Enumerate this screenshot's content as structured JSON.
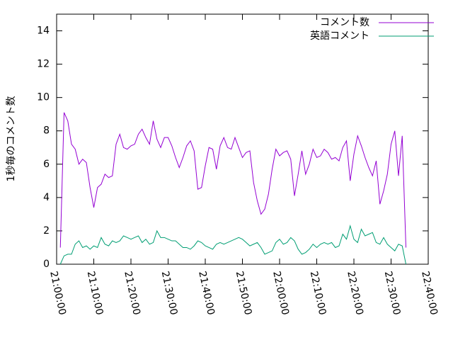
{
  "chart_data": {
    "type": "line",
    "ylabel": "1秒毎のコメント数",
    "x": [
      "21:01:00",
      "21:02:00",
      "21:03:00",
      "21:04:00",
      "21:05:00",
      "21:06:00",
      "21:07:00",
      "21:08:00",
      "21:09:00",
      "21:10:00",
      "21:11:00",
      "21:12:00",
      "21:13:00",
      "21:14:00",
      "21:15:00",
      "21:16:00",
      "21:17:00",
      "21:18:00",
      "21:19:00",
      "21:20:00",
      "21:21:00",
      "21:22:00",
      "21:23:00",
      "21:24:00",
      "21:25:00",
      "21:26:00",
      "21:27:00",
      "21:28:00",
      "21:29:00",
      "21:30:00",
      "21:31:00",
      "21:32:00",
      "21:33:00",
      "21:34:00",
      "21:35:00",
      "21:36:00",
      "21:37:00",
      "21:38:00",
      "21:39:00",
      "21:40:00",
      "21:41:00",
      "21:42:00",
      "21:43:00",
      "21:44:00",
      "21:45:00",
      "21:46:00",
      "21:47:00",
      "21:48:00",
      "21:49:00",
      "21:50:00",
      "21:51:00",
      "21:52:00",
      "21:53:00",
      "21:54:00",
      "21:55:00",
      "21:56:00",
      "21:57:00",
      "21:58:00",
      "21:59:00",
      "22:00:00",
      "22:01:00",
      "22:02:00",
      "22:03:00",
      "22:04:00",
      "22:05:00",
      "22:06:00",
      "22:07:00",
      "22:08:00",
      "22:09:00",
      "22:10:00",
      "22:11:00",
      "22:12:00",
      "22:13:00",
      "22:14:00",
      "22:15:00",
      "22:16:00",
      "22:17:00",
      "22:18:00",
      "22:19:00",
      "22:20:00",
      "22:21:00",
      "22:22:00",
      "22:23:00",
      "22:24:00",
      "22:25:00",
      "22:26:00",
      "22:27:00",
      "22:28:00",
      "22:29:00",
      "22:30:00",
      "22:31:00",
      "22:32:00",
      "22:33:00",
      "22:34:00"
    ],
    "series": [
      {
        "name": "コメント数",
        "color": "#9400d3",
        "values": [
          1.0,
          9.1,
          8.6,
          7.2,
          6.9,
          6.0,
          6.3,
          6.1,
          4.6,
          3.4,
          4.6,
          4.8,
          5.4,
          5.2,
          5.3,
          7.2,
          7.8,
          7.0,
          6.9,
          7.1,
          7.2,
          7.8,
          8.1,
          7.6,
          7.2,
          8.6,
          7.5,
          7.0,
          7.6,
          7.6,
          7.1,
          6.4,
          5.8,
          6.4,
          7.1,
          7.4,
          6.8,
          4.5,
          4.6,
          5.9,
          7.0,
          6.9,
          5.7,
          7.1,
          7.6,
          7.0,
          6.9,
          7.6,
          7.0,
          6.4,
          6.7,
          6.8,
          4.9,
          3.8,
          3.0,
          3.3,
          4.2,
          5.7,
          6.9,
          6.5,
          6.7,
          6.8,
          6.3,
          4.1,
          5.4,
          6.8,
          5.4,
          6.0,
          6.9,
          6.4,
          6.5,
          6.9,
          6.7,
          6.3,
          6.4,
          6.2,
          7.0,
          7.4,
          5.0,
          6.6,
          7.7,
          7.1,
          6.4,
          5.8,
          5.3,
          6.2,
          3.6,
          4.4,
          5.4,
          7.2,
          8.0,
          5.3,
          7.7,
          1.0
        ]
      },
      {
        "name": "英語コメント",
        "color": "#009e73",
        "values": [
          0.0,
          0.5,
          0.6,
          0.6,
          1.2,
          1.4,
          1.0,
          1.1,
          0.9,
          1.1,
          1.0,
          1.6,
          1.2,
          1.1,
          1.4,
          1.3,
          1.4,
          1.7,
          1.6,
          1.5,
          1.6,
          1.7,
          1.3,
          1.5,
          1.2,
          1.3,
          2.0,
          1.6,
          1.6,
          1.5,
          1.4,
          1.4,
          1.2,
          1.0,
          1.0,
          0.9,
          1.1,
          1.4,
          1.3,
          1.1,
          1.0,
          0.9,
          1.2,
          1.3,
          1.2,
          1.3,
          1.4,
          1.5,
          1.6,
          1.5,
          1.3,
          1.1,
          1.2,
          1.3,
          1.0,
          0.6,
          0.7,
          0.8,
          1.3,
          1.5,
          1.2,
          1.3,
          1.6,
          1.4,
          0.9,
          0.6,
          0.7,
          0.9,
          1.2,
          1.0,
          1.2,
          1.3,
          1.2,
          1.3,
          1.0,
          1.1,
          1.8,
          1.5,
          2.3,
          1.5,
          1.3,
          2.1,
          1.7,
          1.8,
          1.9,
          1.3,
          1.2,
          1.6,
          1.2,
          1.0,
          0.8,
          1.2,
          1.1,
          0.0
        ]
      }
    ],
    "xlim": [
      "21:00:00",
      "22:40:00"
    ],
    "xticks": [
      "21:00:00",
      "21:10:00",
      "21:20:00",
      "21:30:00",
      "21:40:00",
      "21:50:00",
      "22:00:00",
      "22:10:00",
      "22:20:00",
      "22:30:00",
      "22:40:00"
    ],
    "ylim": [
      0,
      15
    ],
    "yticks": [
      0,
      2,
      4,
      6,
      8,
      10,
      12,
      14
    ],
    "legend": "top-right"
  }
}
